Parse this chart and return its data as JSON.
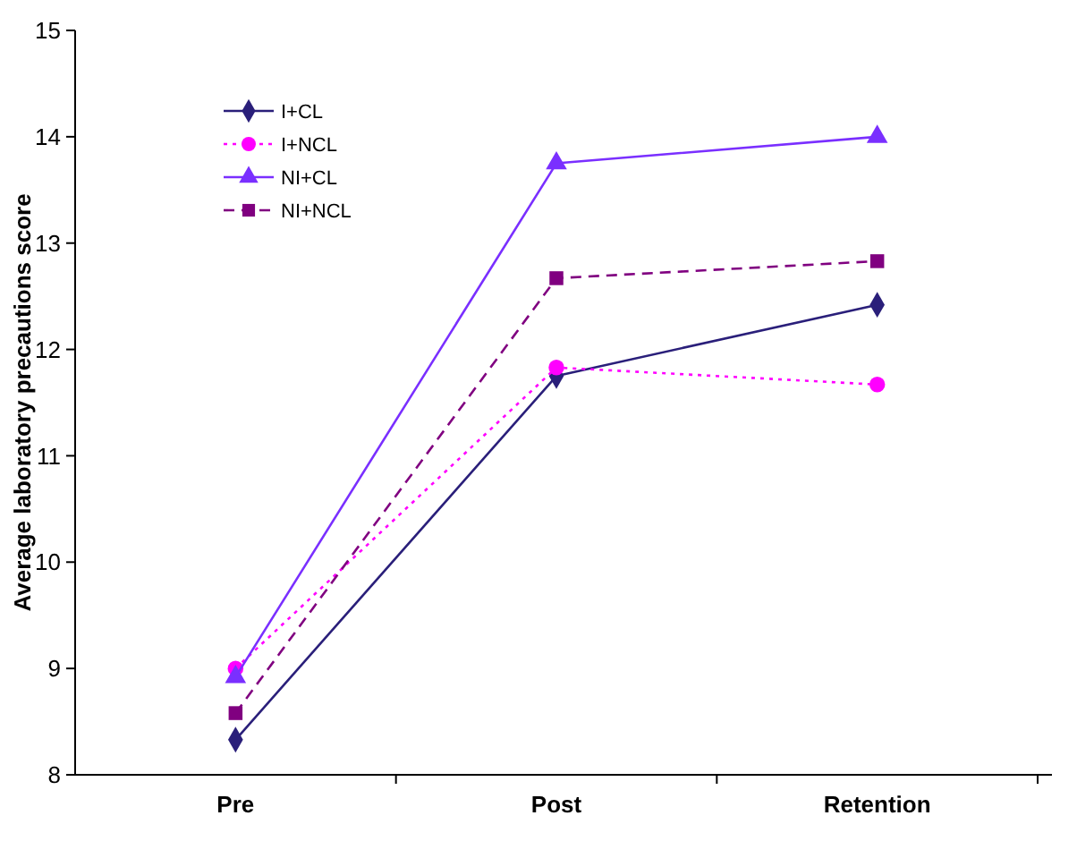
{
  "chart_data": {
    "type": "line",
    "ylabel": "Average laboratory precautions score",
    "categories": [
      "Pre",
      "Post",
      "Retention"
    ],
    "ylim": [
      8,
      15
    ],
    "yticks": [
      8,
      9,
      10,
      11,
      12,
      13,
      14,
      15
    ],
    "grid": false,
    "legend": "top left",
    "series": [
      {
        "name": "I+CL",
        "color": "#2a1f7a",
        "marker": "diamond",
        "line_style": "solid",
        "values": [
          8.33,
          11.75,
          12.42
        ]
      },
      {
        "name": "I+NCL",
        "color": "#ff00ff",
        "marker": "circle",
        "line_style": "dotted",
        "values": [
          9.0,
          11.83,
          11.67
        ]
      },
      {
        "name": "NI+CL",
        "color": "#7a2fff",
        "marker": "triangle",
        "line_style": "solid",
        "values": [
          8.92,
          13.75,
          14.0
        ]
      },
      {
        "name": "NI+NCL",
        "color": "#800080",
        "marker": "square",
        "line_style": "dashed",
        "values": [
          8.58,
          12.67,
          12.83
        ]
      }
    ]
  }
}
